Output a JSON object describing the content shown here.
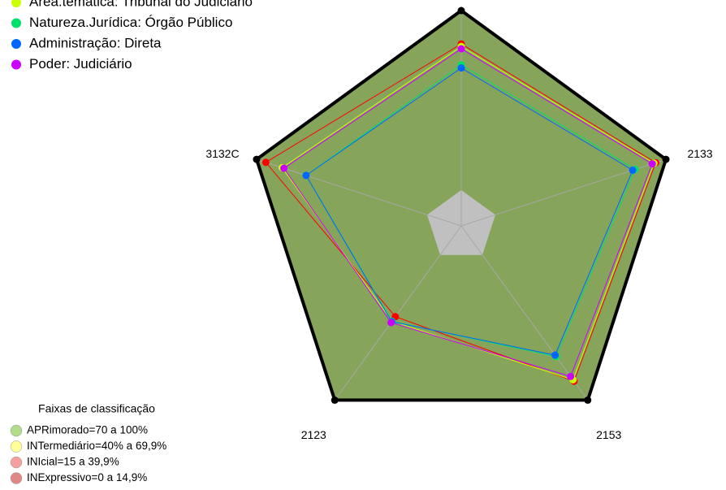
{
  "chart_data": {
    "type": "radar",
    "categories": [
      null,
      "2133",
      "2153",
      "2123",
      "3132C"
    ],
    "rlim": [
      -20,
      100
    ],
    "center_color": "#c0c0c0",
    "outline_color": "#000000",
    "spoke_color": "#a8a8a8",
    "bands_title": "Faixas de classificação",
    "bands": [
      {
        "label": "APRimorado=70 a 100%",
        "color": "#b3dc8a",
        "fill": "#86a55b",
        "from": 70,
        "to": 100
      },
      {
        "label": "INTermediário=40% a 69,9%",
        "color": "#ffff99",
        "fill": "#c6c26f",
        "from": 40,
        "to": 69.9
      },
      {
        "label": "INIcial=15 a 39,9%",
        "color": "#f4a0a0",
        "fill": "#c27c52",
        "from": 15,
        "to": 39.9
      },
      {
        "label": "INExpressivo=0 a 14,9%",
        "color": "#e08888",
        "fill": "#a8432c",
        "from": 0,
        "to": 14.9
      }
    ],
    "series": [
      {
        "name": null,
        "color": "#ff0000",
        "values": [
          81.4,
          94,
          87,
          42.5,
          94.6
        ]
      },
      {
        "name": "Área.temática: Tribunal do Judiciário",
        "color": "#ccff00",
        "values": [
          80,
          93,
          86,
          45.7,
          85
        ]
      },
      {
        "name": "Natureza.Jurídica: Órgão Público",
        "color": "#00e06b",
        "values": [
          69.7,
          82,
          70,
          45.7,
          71
        ]
      },
      {
        "name": "Administração: Direta",
        "color": "#0066ff",
        "values": [
          68,
          80.5,
          69,
          46,
          71
        ]
      },
      {
        "name": "Poder: Judiciário",
        "color": "#cc00ff",
        "values": [
          78.7,
          92,
          83.7,
          46.6,
          84
        ]
      }
    ]
  }
}
